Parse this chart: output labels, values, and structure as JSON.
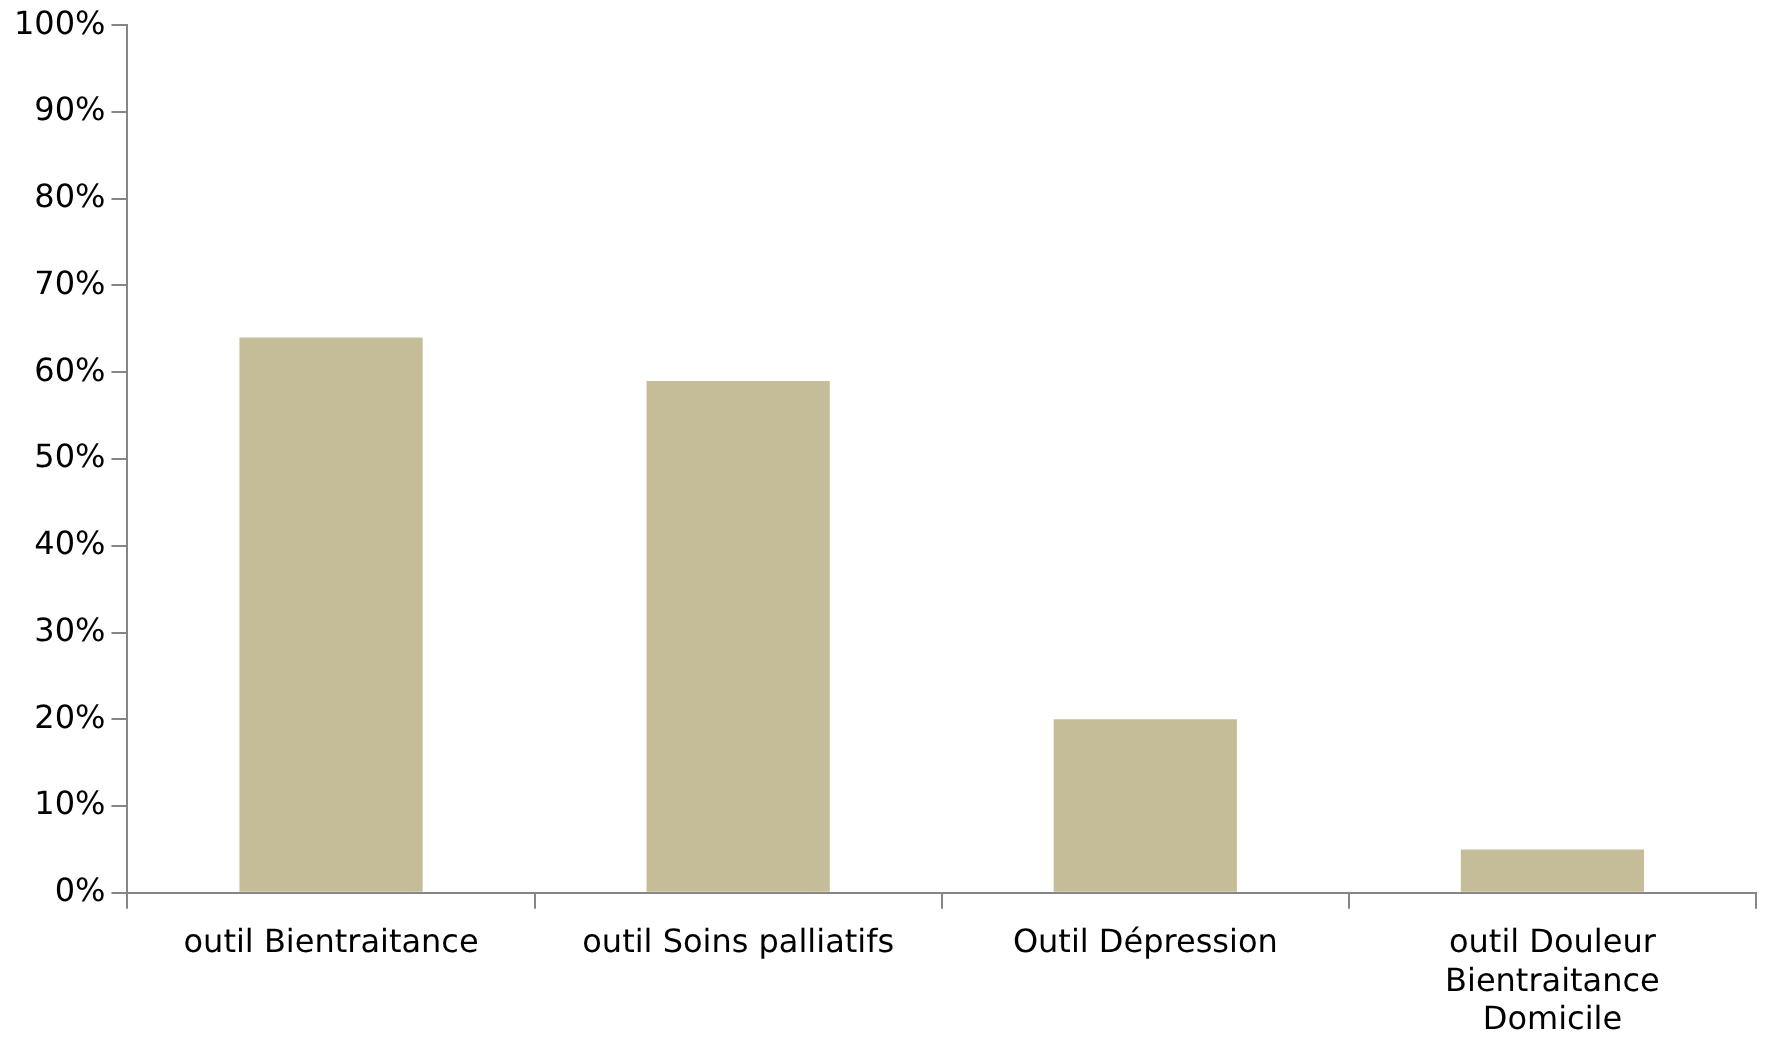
{
  "chart_data": {
    "type": "bar",
    "categories": [
      "outil Bientraitance",
      "outil Soins palliatifs",
      "Outil Dépression",
      "outil Douleur Bientraitance Domicile"
    ],
    "values": [
      64,
      59,
      20,
      5
    ],
    "color": "#c4bd97",
    "ylim": [
      0,
      100
    ],
    "yticks": [
      {
        "value": 0,
        "label": "0%"
      },
      {
        "value": 10,
        "label": "10%"
      },
      {
        "value": 20,
        "label": "20%"
      },
      {
        "value": 30,
        "label": "30%"
      },
      {
        "value": 40,
        "label": "40%"
      },
      {
        "value": 50,
        "label": "50%"
      },
      {
        "value": 60,
        "label": "60%"
      },
      {
        "value": 70,
        "label": "70%"
      },
      {
        "value": 80,
        "label": "80%"
      },
      {
        "value": 90,
        "label": "90%"
      },
      {
        "value": 100,
        "label": "100%"
      }
    ],
    "grid": false,
    "legend": false
  }
}
